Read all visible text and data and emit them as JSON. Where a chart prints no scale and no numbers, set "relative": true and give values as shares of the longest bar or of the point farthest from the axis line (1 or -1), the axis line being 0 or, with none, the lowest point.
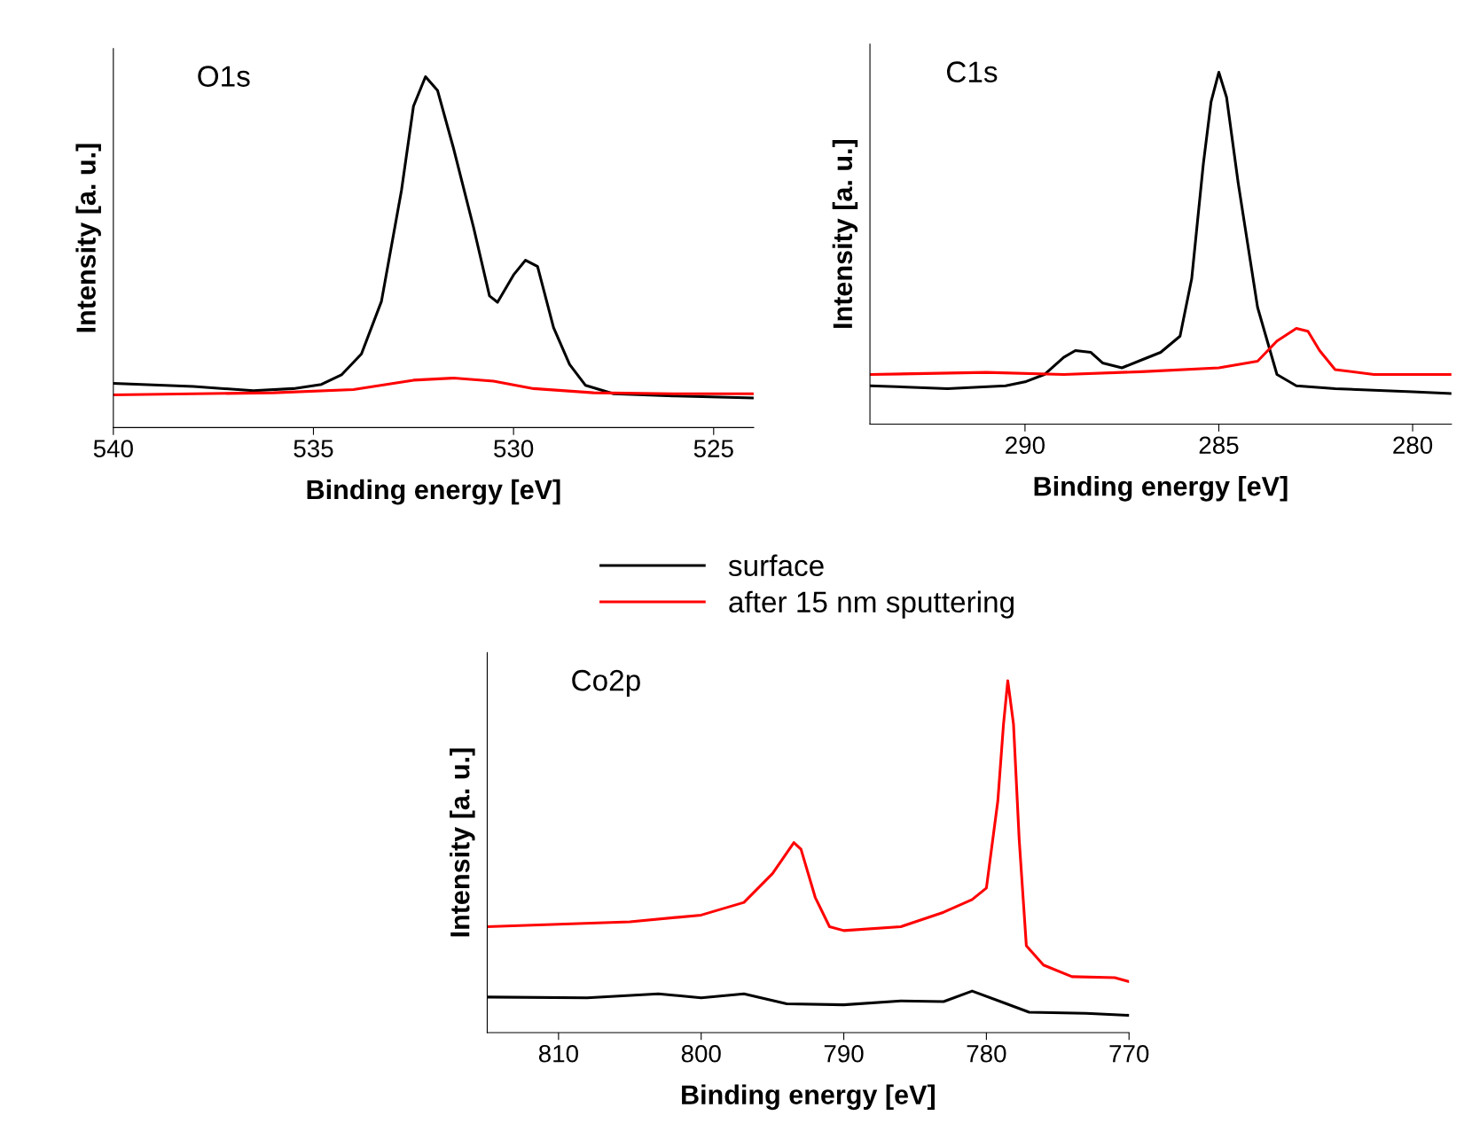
{
  "chart_data": [
    {
      "type": "line",
      "relative": true,
      "xlabel": "Binding energy [eV]",
      "ylabel": "Intensity [a. u.]",
      "annotations": [
        "O1s"
      ],
      "xlim": [
        540,
        524
      ],
      "xticks": [
        540,
        535,
        530,
        525
      ],
      "legend": false,
      "series": [
        {
          "color": "#000000",
          "x": [
            540,
            538,
            536.5,
            535.5,
            534.8,
            534.3,
            533.8,
            533.3,
            532.8,
            532.5,
            532.2,
            531.9,
            531.5,
            531.0,
            530.6,
            530.4,
            530.0,
            529.7,
            529.4,
            529.0,
            528.6,
            528.2,
            527.5,
            526,
            524
          ],
          "values": [
            0.126,
            0.117,
            0.105,
            0.111,
            0.123,
            0.15,
            0.21,
            0.36,
            0.676,
            0.916,
            1.0,
            0.961,
            0.796,
            0.571,
            0.375,
            0.357,
            0.435,
            0.477,
            0.459,
            0.285,
            0.18,
            0.12,
            0.096,
            0.09,
            0.084
          ]
        },
        {
          "color": "#ff0000",
          "x": [
            540,
            536,
            534,
            532.5,
            531.5,
            530.5,
            529.5,
            528,
            526,
            524
          ],
          "values": [
            0.093,
            0.099,
            0.108,
            0.135,
            0.141,
            0.132,
            0.111,
            0.099,
            0.096,
            0.096
          ]
        }
      ]
    },
    {
      "type": "line",
      "relative": true,
      "xlabel": "Binding energy [eV]",
      "ylabel": "Intensity [a. u.]",
      "annotations": [
        "C1s"
      ],
      "xlim": [
        294,
        279
      ],
      "xticks": [
        290,
        285,
        280
      ],
      "legend": false,
      "series": [
        {
          "color": "#000000",
          "x": [
            294,
            292,
            290.5,
            290,
            289.5,
            289,
            288.7,
            288.3,
            288,
            287.5,
            287,
            286.5,
            286,
            285.7,
            285.4,
            285.2,
            285.0,
            284.8,
            284.5,
            284.0,
            283.5,
            283,
            282,
            280,
            279
          ],
          "values": [
            0.109,
            0.101,
            0.109,
            0.12,
            0.141,
            0.19,
            0.209,
            0.204,
            0.174,
            0.16,
            0.182,
            0.204,
            0.25,
            0.413,
            0.739,
            0.916,
            1.0,
            0.929,
            0.685,
            0.332,
            0.141,
            0.109,
            0.101,
            0.092,
            0.087
          ]
        },
        {
          "color": "#ff0000",
          "x": [
            294,
            291,
            289,
            287,
            285,
            284,
            283.5,
            283,
            282.7,
            282.4,
            282,
            281,
            279
          ],
          "values": [
            0.141,
            0.147,
            0.141,
            0.149,
            0.16,
            0.179,
            0.236,
            0.272,
            0.264,
            0.209,
            0.155,
            0.141,
            0.141
          ]
        }
      ]
    },
    {
      "type": "line",
      "relative": true,
      "xlabel": "Binding energy [eV]",
      "ylabel": "Intensity [a. u.]",
      "annotations": [
        "Co2p"
      ],
      "xlim": [
        815,
        770
      ],
      "xticks": [
        810,
        800,
        790,
        780,
        770
      ],
      "legend": "top",
      "series": [
        {
          "name": "surface",
          "color": "#000000",
          "x": [
            815,
            808,
            803,
            800,
            797,
            794,
            790,
            786,
            783,
            781,
            779,
            777,
            773,
            770
          ],
          "values": [
            0.101,
            0.099,
            0.11,
            0.099,
            0.11,
            0.082,
            0.079,
            0.09,
            0.088,
            0.118,
            0.088,
            0.058,
            0.055,
            0.049
          ]
        },
        {
          "name": "after 15 nm sputtering",
          "color": "#ff0000",
          "x": [
            815,
            805,
            800,
            797,
            795,
            793.5,
            793,
            792,
            791,
            790,
            786,
            783,
            781,
            780,
            779.2,
            778.8,
            778.5,
            778.1,
            777.7,
            777.2,
            776,
            774,
            771,
            770
          ],
          "values": [
            0.301,
            0.315,
            0.334,
            0.37,
            0.452,
            0.54,
            0.521,
            0.384,
            0.301,
            0.29,
            0.301,
            0.342,
            0.378,
            0.411,
            0.658,
            0.877,
            1.0,
            0.877,
            0.548,
            0.247,
            0.192,
            0.159,
            0.156,
            0.145
          ]
        }
      ]
    }
  ]
}
